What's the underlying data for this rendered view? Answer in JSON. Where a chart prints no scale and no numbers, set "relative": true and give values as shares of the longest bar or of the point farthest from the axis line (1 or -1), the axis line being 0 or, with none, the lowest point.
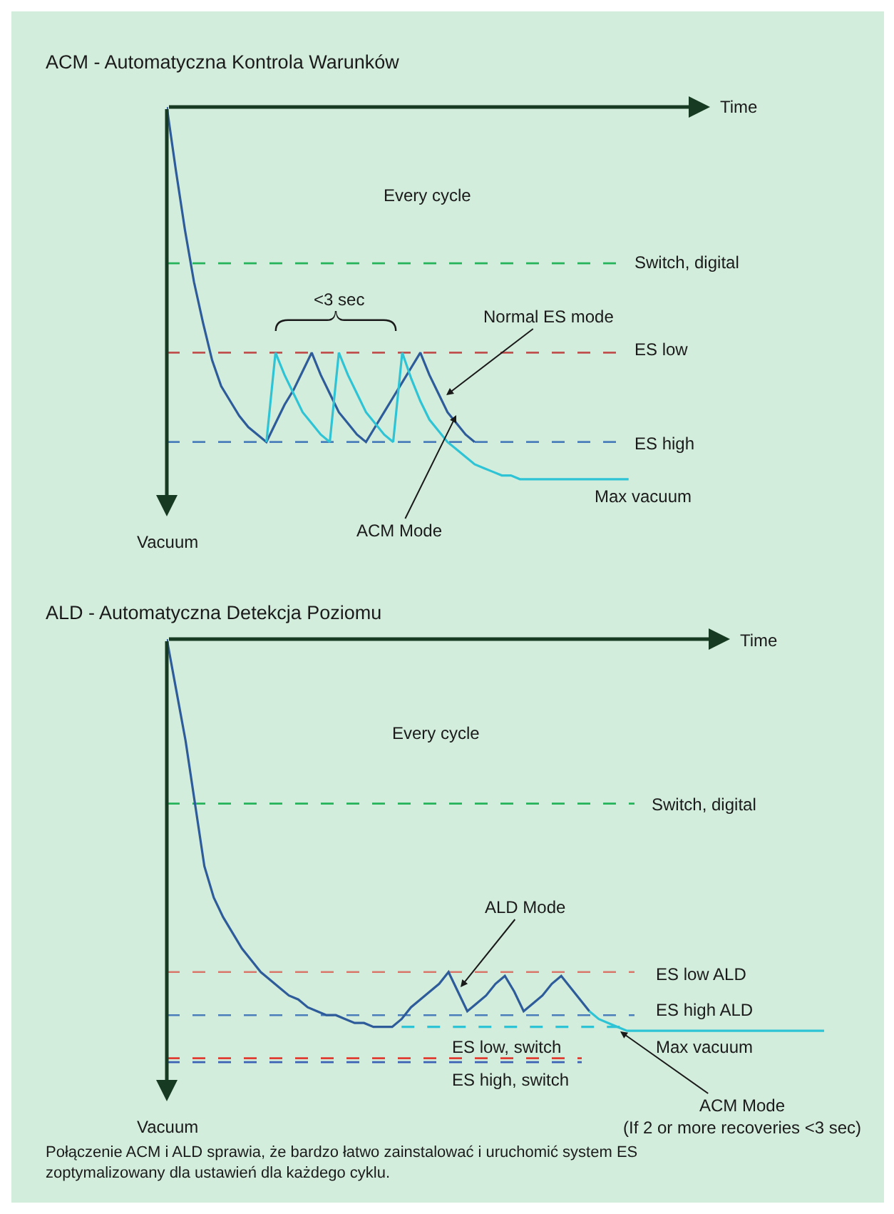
{
  "chart_data": [
    {
      "type": "line",
      "title": "ACM - Automatyczna Kontrola Warunków",
      "xlabel": "Time",
      "ylabel": "Vacuum",
      "relative": true,
      "categories": [
        null,
        null,
        null,
        null,
        null,
        null,
        null,
        null,
        null,
        null,
        null,
        null,
        null,
        null,
        null,
        null,
        null,
        null,
        null,
        null,
        null,
        null,
        null,
        null,
        null,
        null,
        null,
        null,
        null,
        null,
        null,
        null,
        null,
        null,
        null,
        null,
        null,
        null,
        null,
        null,
        null,
        null,
        null,
        null,
        null,
        null,
        null,
        null,
        null,
        null,
        null,
        null,
        null,
        null,
        null,
        null,
        null,
        null,
        null,
        null,
        null
      ],
      "series": [
        {
          "color": "#2e5c9a",
          "values": [
            0,
            -0.17,
            -0.33,
            -0.47,
            -0.58,
            -0.68,
            -0.75,
            -0.79,
            -0.83,
            -0.86,
            -0.88,
            -0.9,
            -0.85,
            -0.8,
            -0.76,
            -0.71,
            -0.66,
            -0.72,
            -0.77,
            -0.82,
            -0.85,
            -0.88,
            -0.9,
            -0.86,
            -0.82,
            -0.78,
            -0.74,
            -0.7,
            -0.66,
            -0.72,
            -0.77,
            -0.82,
            -0.85,
            -0.88,
            -0.9,
            null,
            null,
            null,
            null,
            null,
            null,
            null,
            null,
            null,
            null,
            null,
            null,
            null,
            null,
            null,
            null,
            null,
            null,
            null,
            null,
            null,
            null,
            null,
            null,
            null,
            null
          ]
        },
        {
          "color": "#2ec4d6",
          "values": [
            null,
            null,
            null,
            null,
            null,
            null,
            null,
            null,
            null,
            null,
            null,
            -0.9,
            -0.66,
            -0.72,
            -0.77,
            -0.82,
            -0.85,
            -0.88,
            -0.9,
            -0.66,
            -0.72,
            -0.77,
            -0.82,
            -0.85,
            -0.88,
            -0.9,
            -0.66,
            -0.73,
            -0.79,
            -0.84,
            -0.87,
            -0.9,
            -0.92,
            -0.94,
            -0.96,
            -0.97,
            -0.98,
            -0.99,
            -0.99,
            -1,
            -1,
            -1,
            -1,
            -1,
            -1,
            -1,
            -1,
            -1,
            -1,
            -1,
            -1,
            -1,
            null,
            null,
            null,
            null,
            null,
            null,
            null,
            null,
            null
          ]
        }
      ],
      "ref_lines": [
        {
          "axis": "y",
          "value": -0.42,
          "label": "Switch, digital",
          "color": "#25b35a",
          "line_style": "dashed"
        },
        {
          "axis": "y",
          "value": -0.66,
          "label": "ES low",
          "color": "#c0504d",
          "line_style": "dashed"
        },
        {
          "axis": "y",
          "value": -0.9,
          "label": "ES high",
          "color": "#4a7ebb",
          "line_style": "dashed"
        }
      ],
      "annotations": [
        "Every cycle",
        "<3 sec",
        "Max vacuum",
        "Normal ES mode",
        "ACM Mode"
      ]
    },
    {
      "type": "line",
      "title": "ALD - Automatyczna Detekcja Poziomu",
      "xlabel": "Time",
      "ylabel": "Vacuum",
      "relative": true,
      "categories": [
        null,
        null,
        null,
        null,
        null,
        null,
        null,
        null,
        null,
        null,
        null,
        null,
        null,
        null,
        null,
        null,
        null,
        null,
        null,
        null,
        null,
        null,
        null,
        null,
        null,
        null,
        null,
        null,
        null,
        null,
        null,
        null,
        null,
        null,
        null,
        null,
        null,
        null,
        null,
        null,
        null,
        null,
        null,
        null,
        null,
        null,
        null,
        null,
        null,
        null,
        null,
        null,
        null,
        null,
        null,
        null,
        null,
        null,
        null,
        null,
        null,
        null,
        null,
        null,
        null,
        null,
        null,
        null,
        null,
        null,
        null
      ],
      "series": [
        {
          "color": "#2e5c9a",
          "values": [
            0,
            -0.13,
            -0.26,
            -0.42,
            -0.58,
            -0.66,
            -0.71,
            -0.75,
            -0.79,
            -0.82,
            -0.85,
            -0.87,
            -0.89,
            -0.91,
            -0.92,
            -0.94,
            -0.95,
            -0.96,
            -0.96,
            -0.97,
            -0.98,
            -0.98,
            -0.99,
            -0.99,
            -0.99,
            -0.97,
            -0.94,
            -0.92,
            -0.9,
            -0.88,
            -0.85,
            -0.9,
            -0.95,
            -0.93,
            -0.91,
            -0.88,
            -0.86,
            -0.9,
            -0.95,
            -0.93,
            -0.91,
            -0.88,
            -0.86,
            -0.89,
            -0.92,
            -0.95,
            null,
            null,
            null,
            null,
            null,
            null,
            null,
            null,
            null,
            null,
            null,
            null,
            null,
            null,
            null,
            null,
            null,
            null,
            null,
            null,
            null,
            null,
            null,
            null,
            null
          ]
        },
        {
          "color": "#2ec4d6",
          "values": [
            null,
            null,
            null,
            null,
            null,
            null,
            null,
            null,
            null,
            null,
            null,
            null,
            null,
            null,
            null,
            null,
            null,
            null,
            null,
            null,
            null,
            null,
            null,
            null,
            null,
            null,
            null,
            null,
            null,
            null,
            null,
            null,
            null,
            null,
            null,
            null,
            null,
            null,
            null,
            null,
            null,
            null,
            null,
            null,
            null,
            -0.95,
            -0.97,
            -0.98,
            -0.99,
            -1,
            -1,
            -1,
            -1,
            -1,
            -1,
            -1,
            -1,
            -1,
            -1,
            -1,
            -1,
            -1,
            -1,
            -1,
            -1,
            -1,
            -1,
            -1,
            -1,
            -1,
            -1
          ]
        },
        {
          "color": "#2ec4d6",
          "line_style": "dashed",
          "values": [
            null,
            null,
            null,
            null,
            null,
            null,
            null,
            null,
            null,
            null,
            null,
            null,
            null,
            null,
            null,
            null,
            null,
            null,
            null,
            null,
            null,
            null,
            null,
            null,
            null,
            -0.99,
            -0.99,
            -0.99,
            -0.99,
            -0.99,
            -0.99,
            -0.99,
            -0.99,
            -0.99,
            -0.99,
            -0.99,
            -0.99,
            -0.99,
            -0.99,
            -0.99,
            -0.99,
            -0.99,
            -0.99,
            -0.99,
            -0.99,
            -0.99,
            -0.99,
            -0.99,
            -0.99,
            -0.99,
            null,
            null,
            null,
            null,
            null,
            null,
            null,
            null,
            null,
            null,
            null,
            null,
            null,
            null,
            null,
            null,
            null,
            null,
            null,
            null,
            null
          ]
        }
      ],
      "ref_lines": [
        {
          "axis": "y",
          "value": -0.42,
          "label": "Switch, digital",
          "color": "#25b35a",
          "line_style": "dashed"
        },
        {
          "axis": "y",
          "value": -0.85,
          "label": "ES low ALD",
          "color": "#d9776a",
          "line_style": "dashed"
        },
        {
          "axis": "y",
          "value": -0.96,
          "label": "ES high ALD",
          "color": "#4a7ebb",
          "line_style": "dashed"
        },
        {
          "axis": "y",
          "value": -1.07,
          "label": "ES low, switch",
          "color": "#e03c31",
          "line_style": "dashed"
        },
        {
          "axis": "y",
          "value": -1.08,
          "label": "ES high, switch",
          "color": "#3b62b5",
          "line_style": "dashed"
        }
      ],
      "annotations": [
        "Every cycle",
        "Max vacuum",
        "Połączenie ACM i ALD sprawia, że bardzo łatwo zainstalować i uruchomić system ES\nzoptymalizowany dla ustawień dla każdego cyklu.",
        "ALD Mode",
        "ACM Mode\n(If 2 or more recoveries <3 sec)"
      ]
    }
  ]
}
